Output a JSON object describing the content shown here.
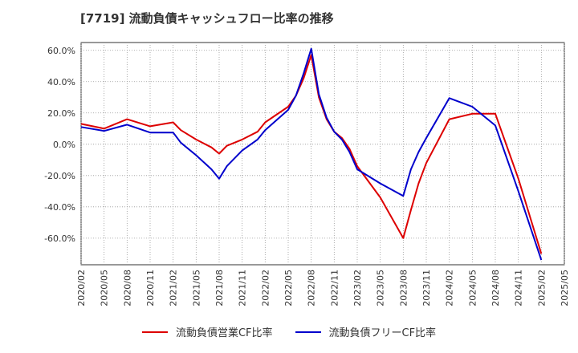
{
  "title": "[7719]  流動負債キャッシュフロー比率の推移",
  "legend": [
    {
      "label": "流動負債営業CF比率",
      "color": "#dd0000"
    },
    {
      "label": "流動負債フリーCF比率",
      "color": "#0000cc"
    }
  ],
  "chart_data": {
    "type": "line",
    "title": "[7719]  流動負債キャッシュフロー比率の推移",
    "xlabel": "",
    "ylabel": "",
    "ylim": [
      -77,
      65
    ],
    "y_ticks": [
      60,
      40,
      20,
      0,
      -20,
      -40,
      -60
    ],
    "y_tick_labels": [
      "60.0%",
      "40.0%",
      "20.0%",
      "0.0%",
      "-20.0%",
      "-40.0%",
      "-60.0%"
    ],
    "x_tick_labels": [
      "2020/02",
      "2020/05",
      "2020/08",
      "2020/11",
      "2021/02",
      "2021/05",
      "2021/08",
      "2021/11",
      "2022/02",
      "2022/05",
      "2022/08",
      "2022/11",
      "2023/02",
      "2023/05",
      "2023/08",
      "2023/11",
      "2024/02",
      "2024/05",
      "2024/08",
      "2024/11",
      "2025/02",
      "2025/05"
    ],
    "grid": true,
    "legend_position": "bottom",
    "series": [
      {
        "name": "流動負債営業CF比率",
        "color": "#dd0000",
        "x": [
          "2020/02",
          "2020/05",
          "2020/08",
          "2020/11",
          "2021/02",
          "2021/03",
          "2021/05",
          "2021/07",
          "2021/08",
          "2021/09",
          "2021/11",
          "2022/01",
          "2022/02",
          "2022/05",
          "2022/06",
          "2022/07",
          "2022/08",
          "2022/09",
          "2022/10",
          "2022/11",
          "2022/12",
          "2023/01",
          "2023/02",
          "2023/05",
          "2023/08",
          "2023/09",
          "2023/10",
          "2023/11",
          "2024/02",
          "2024/05",
          "2024/08",
          "2024/11",
          "2025/02"
        ],
        "values": [
          13,
          10,
          16,
          11.5,
          14,
          9,
          3,
          -2,
          -6,
          -1,
          3,
          8,
          14,
          24,
          31,
          42,
          57,
          30,
          16,
          8,
          4,
          -3,
          -14,
          -34,
          -60,
          -42,
          -25,
          -12,
          16,
          19.5,
          19.5,
          -22,
          -70
        ]
      },
      {
        "name": "流動負債フリーCF比率",
        "color": "#0000cc",
        "x": [
          "2020/02",
          "2020/05",
          "2020/08",
          "2020/11",
          "2021/02",
          "2021/03",
          "2021/05",
          "2021/07",
          "2021/08",
          "2021/09",
          "2021/11",
          "2022/01",
          "2022/02",
          "2022/05",
          "2022/06",
          "2022/07",
          "2022/08",
          "2022/09",
          "2022/10",
          "2022/11",
          "2022/12",
          "2023/01",
          "2023/02",
          "2023/05",
          "2023/08",
          "2023/09",
          "2023/10",
          "2023/11",
          "2024/02",
          "2024/05",
          "2024/08",
          "2024/11",
          "2025/02"
        ],
        "values": [
          11,
          8.5,
          12.5,
          7.5,
          7.5,
          1,
          -7,
          -16,
          -22,
          -14,
          -4,
          3,
          9,
          22,
          31,
          45,
          61,
          32,
          17,
          8,
          3,
          -5,
          -16,
          -25,
          -33,
          -16,
          -5,
          4,
          29.5,
          24,
          12,
          -30,
          -74
        ]
      }
    ]
  }
}
